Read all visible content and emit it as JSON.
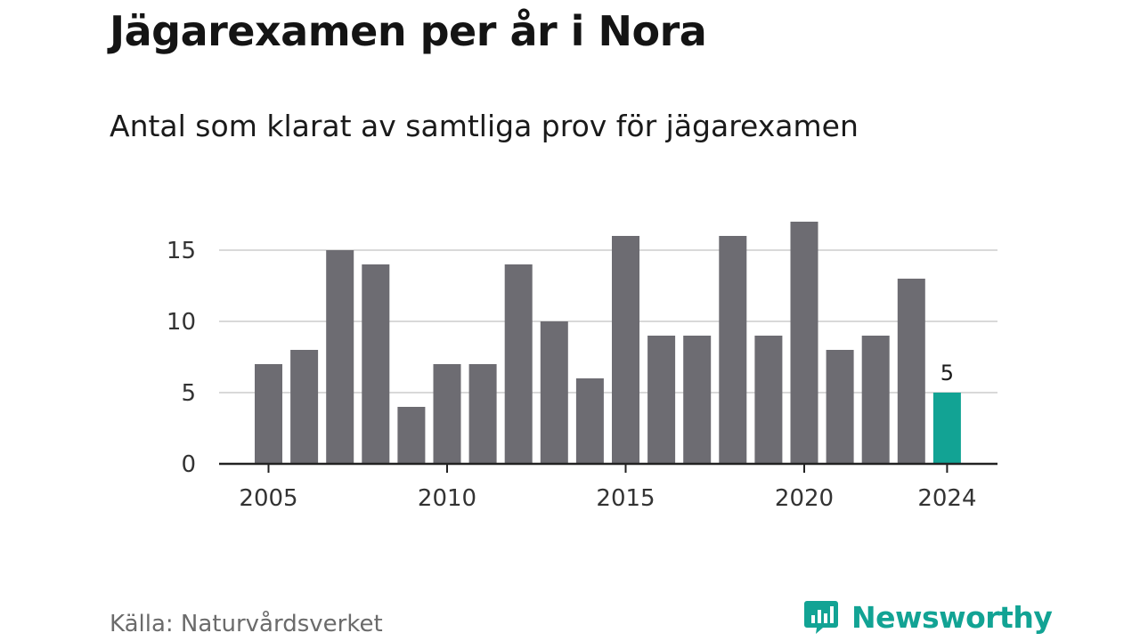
{
  "title": "Jägarexamen per år i Nora",
  "subtitle": "Antal som klarat av samtliga prov för jägarexamen",
  "source": "Källa: Naturvårdsverket",
  "brand": {
    "name": "Newsworthy",
    "color": "#12a394",
    "icon": "bar-chart-speech-bubble-icon"
  },
  "chart_data": {
    "type": "bar",
    "categories": [
      "2005",
      "2006",
      "2007",
      "2008",
      "2009",
      "2010",
      "2011",
      "2012",
      "2013",
      "2014",
      "2015",
      "2016",
      "2017",
      "2018",
      "2019",
      "2020",
      "2021",
      "2022",
      "2023",
      "2024"
    ],
    "values": [
      7,
      8,
      15,
      14,
      4,
      7,
      7,
      14,
      10,
      6,
      16,
      9,
      9,
      16,
      9,
      17,
      8,
      9,
      13,
      5
    ],
    "x_tick_labels": [
      "2005",
      "2010",
      "2015",
      "2020",
      "2024"
    ],
    "y_ticks": [
      0,
      5,
      10,
      15
    ],
    "ylim": [
      0,
      17
    ],
    "grid": true,
    "bar_color": "#6d6c72",
    "highlight_color": "#12a394",
    "highlight_category": "2024",
    "data_labels": [
      {
        "category": "2024",
        "text": "5"
      }
    ],
    "xlabel": "",
    "ylabel": ""
  }
}
